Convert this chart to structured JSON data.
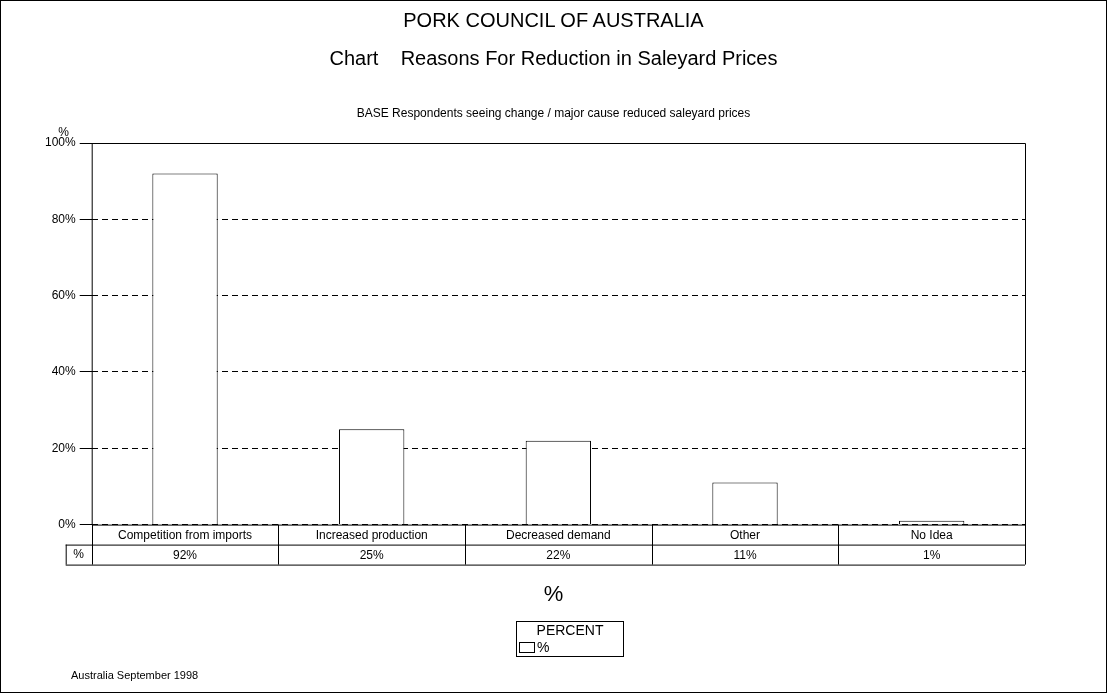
{
  "chart_data": {
    "type": "bar",
    "title": "PORK COUNCIL OF AUSTRALIA",
    "subtitle": "Chart    Reasons For Reduction in Saleyard Prices",
    "ylabel": "%",
    "xlabel": "%",
    "legend_title": "PERCENT",
    "legend": "bottom",
    "grid": "y",
    "line_style": "dashed",
    "data_labels": true,
    "categories": [
      "Competition from imports",
      "Increased production",
      "Decreased demand",
      "Other",
      "No Idea"
    ],
    "series": [
      {
        "name": "%",
        "color": "#ffffff",
        "values": [
          92,
          25,
          22,
          11,
          1
        ],
        "value_labels": [
          "92%",
          "25%",
          "22%",
          "11%",
          "1%"
        ]
      }
    ],
    "ylim": [
      0,
      100
    ],
    "yticks": [
      {
        "value": 0,
        "label": "0%"
      },
      {
        "value": 20,
        "label": "20%"
      },
      {
        "value": 40,
        "label": "40%"
      },
      {
        "value": 60,
        "label": "60%"
      },
      {
        "value": 80,
        "label": "80%"
      },
      {
        "value": 100,
        "label": "100%"
      }
    ],
    "annotations": [
      "BASE Respondents seeing change / major cause reduced saleyard prices",
      "Australia September 1998"
    ]
  }
}
